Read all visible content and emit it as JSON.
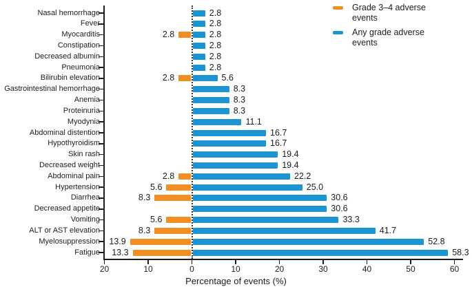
{
  "figure": {
    "background": "#ffffff",
    "text_color": "#1c1c1c"
  },
  "legend": {
    "entries": [
      {
        "label": "Grade 3–4 adverse events",
        "color": "#f08e24",
        "series": "grade_3_4"
      },
      {
        "label": "Any grade adverse events",
        "color": "#1b94d1",
        "series": "any_grade"
      }
    ]
  },
  "chart_data": {
    "type": "bar",
    "subtype": "diverging-horizontal",
    "title": "",
    "xlabel": "Percentage of events (%)",
    "ylabel": "",
    "x_axis": {
      "range": [
        -20,
        62
      ],
      "tick_values": [
        -20,
        -10,
        0,
        10,
        20,
        30,
        40,
        50,
        60
      ],
      "tick_labels": [
        "20",
        "10",
        "0",
        "10",
        "20",
        "30",
        "40",
        "50",
        "60"
      ],
      "zero_line_style": "dotted"
    },
    "series": [
      {
        "name": "Grade 3–4 adverse events",
        "color": "#f08e24",
        "side": "left"
      },
      {
        "name": "Any grade adverse events",
        "color": "#1b94d1",
        "side": "right"
      }
    ],
    "rows": [
      {
        "label": "Nasal hemorrhage",
        "any_grade": 2.8,
        "grade_3_4": null
      },
      {
        "label": "Fever",
        "any_grade": 2.8,
        "grade_3_4": null
      },
      {
        "label": "Myocarditis",
        "any_grade": 2.8,
        "grade_3_4": 2.8
      },
      {
        "label": "Constipation",
        "any_grade": 2.8,
        "grade_3_4": null
      },
      {
        "label": "Decreased albumin",
        "any_grade": 2.8,
        "grade_3_4": null
      },
      {
        "label": "Pneumonia",
        "any_grade": 2.8,
        "grade_3_4": null
      },
      {
        "label": "Bilirubin elevation",
        "any_grade": 5.6,
        "grade_3_4": 2.8
      },
      {
        "label": "Gastrointestinal hemorrhage",
        "any_grade": 8.3,
        "grade_3_4": null
      },
      {
        "label": "Anemia",
        "any_grade": 8.3,
        "grade_3_4": null
      },
      {
        "label": "Proteinuria",
        "any_grade": 8.3,
        "grade_3_4": null
      },
      {
        "label": "Myodynia",
        "any_grade": 11.1,
        "grade_3_4": null
      },
      {
        "label": "Abdominal distention",
        "any_grade": 16.7,
        "grade_3_4": null
      },
      {
        "label": "Hypothyroidism",
        "any_grade": 16.7,
        "grade_3_4": null
      },
      {
        "label": "Skin rash",
        "any_grade": 19.4,
        "grade_3_4": null
      },
      {
        "label": "Decreased weight",
        "any_grade": 19.4,
        "grade_3_4": null
      },
      {
        "label": "Abdominal pain",
        "any_grade": 22.2,
        "grade_3_4": 2.8
      },
      {
        "label": "Hypertension",
        "any_grade": 25.0,
        "grade_3_4": 5.6
      },
      {
        "label": "Diarrhea",
        "any_grade": 30.6,
        "grade_3_4": 8.3
      },
      {
        "label": "Decreased appetite",
        "any_grade": 30.6,
        "grade_3_4": null
      },
      {
        "label": "Vomiting",
        "any_grade": 33.3,
        "grade_3_4": 5.6
      },
      {
        "label": "ALT or AST elevation",
        "any_grade": 41.7,
        "grade_3_4": 8.3
      },
      {
        "label": "Myelosuppression",
        "any_grade": 52.8,
        "grade_3_4": 13.9
      },
      {
        "label": "Fatigue",
        "any_grade": 58.3,
        "grade_3_4": 13.3
      }
    ]
  }
}
